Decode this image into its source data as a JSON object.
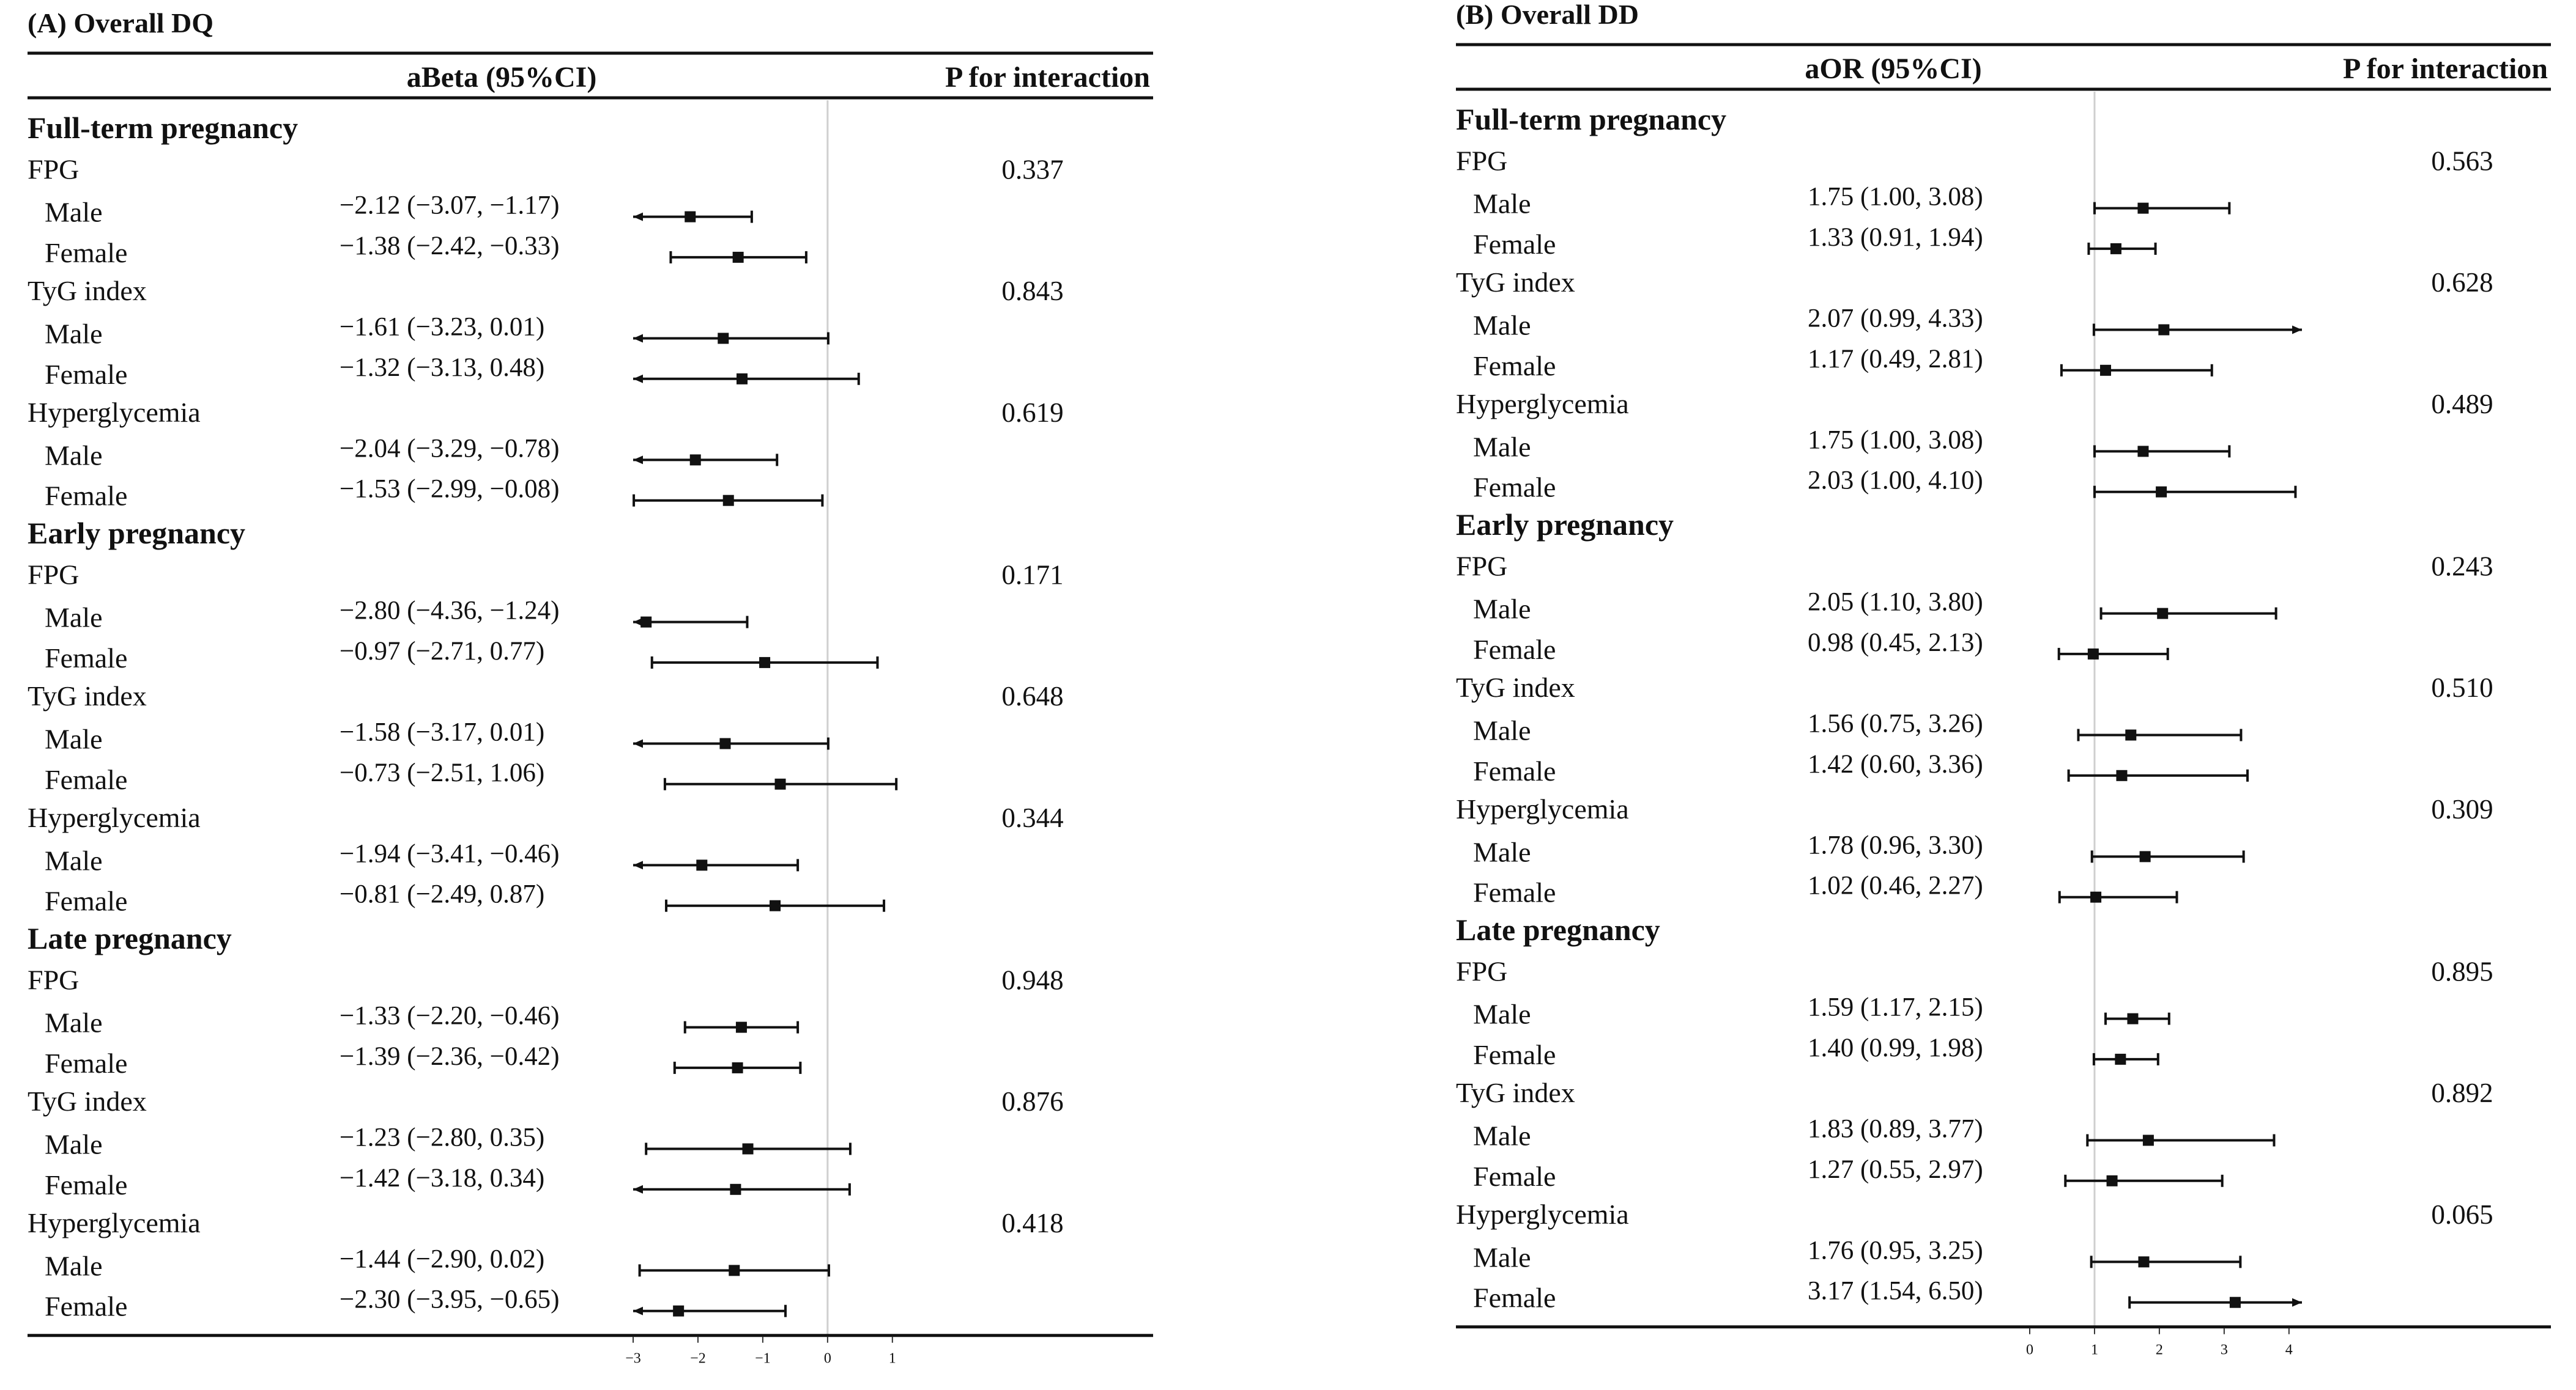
{
  "chart_data": [
    {
      "type": "forest",
      "title": "(A) Overall DQ",
      "estimate_header": "aBeta (95%CI)",
      "p_header": "P for interaction",
      "null_value": 0,
      "xlim": [
        -3,
        1.2
      ],
      "x_ticks": [
        "-3",
        "-2",
        "-1",
        "0",
        "1"
      ],
      "groups": [
        {
          "period": "Full-term pregnancy",
          "exposures": [
            {
              "name": "FPG",
              "p": "0.337",
              "rows": [
                {
                  "sex": "Male",
                  "label": "−2.12 (−3.07, −1.17)",
                  "est": -2.12,
                  "lo": -3.07,
                  "hi": -1.17
                },
                {
                  "sex": "Female",
                  "label": "−1.38 (−2.42, −0.33)",
                  "est": -1.38,
                  "lo": -2.42,
                  "hi": -0.33
                }
              ]
            },
            {
              "name": "TyG index",
              "p": "0.843",
              "rows": [
                {
                  "sex": "Male",
                  "label": "−1.61 (−3.23, 0.01)",
                  "est": -1.61,
                  "lo": -3.23,
                  "hi": 0.01
                },
                {
                  "sex": "Female",
                  "label": "−1.32 (−3.13, 0.48)",
                  "est": -1.32,
                  "lo": -3.13,
                  "hi": 0.48
                }
              ]
            },
            {
              "name": "Hyperglycemia",
              "p": "0.619",
              "rows": [
                {
                  "sex": "Male",
                  "label": "−2.04 (−3.29, −0.78)",
                  "est": -2.04,
                  "lo": -3.29,
                  "hi": -0.78
                },
                {
                  "sex": "Female",
                  "label": "−1.53 (−2.99, −0.08)",
                  "est": -1.53,
                  "lo": -2.99,
                  "hi": -0.08
                }
              ]
            }
          ]
        },
        {
          "period": "Early pregnancy",
          "exposures": [
            {
              "name": "FPG",
              "p": "0.171",
              "rows": [
                {
                  "sex": "Male",
                  "label": "−2.80 (−4.36, −1.24)",
                  "est": -2.8,
                  "lo": -4.36,
                  "hi": -1.24
                },
                {
                  "sex": "Female",
                  "label": "−0.97 (−2.71, 0.77)",
                  "est": -0.97,
                  "lo": -2.71,
                  "hi": 0.77
                }
              ]
            },
            {
              "name": "TyG index",
              "p": "0.648",
              "rows": [
                {
                  "sex": "Male",
                  "label": "−1.58 (−3.17, 0.01)",
                  "est": -1.58,
                  "lo": -3.17,
                  "hi": 0.01
                },
                {
                  "sex": "Female",
                  "label": "−0.73 (−2.51, 1.06)",
                  "est": -0.73,
                  "lo": -2.51,
                  "hi": 1.06
                }
              ]
            },
            {
              "name": "Hyperglycemia",
              "p": "0.344",
              "rows": [
                {
                  "sex": "Male",
                  "label": "−1.94 (−3.41, −0.46)",
                  "est": -1.94,
                  "lo": -3.41,
                  "hi": -0.46
                },
                {
                  "sex": "Female",
                  "label": "−0.81 (−2.49, 0.87)",
                  "est": -0.81,
                  "lo": -2.49,
                  "hi": 0.87
                }
              ]
            }
          ]
        },
        {
          "period": "Late pregnancy",
          "exposures": [
            {
              "name": "FPG",
              "p": "0.948",
              "rows": [
                {
                  "sex": "Male",
                  "label": "−1.33 (−2.20, −0.46)",
                  "est": -1.33,
                  "lo": -2.2,
                  "hi": -0.46
                },
                {
                  "sex": "Female",
                  "label": "−1.39 (−2.36, −0.42)",
                  "est": -1.39,
                  "lo": -2.36,
                  "hi": -0.42
                }
              ]
            },
            {
              "name": "TyG index",
              "p": "0.876",
              "rows": [
                {
                  "sex": "Male",
                  "label": "−1.23 (−2.80, 0.35)",
                  "est": -1.23,
                  "lo": -2.8,
                  "hi": 0.35
                },
                {
                  "sex": "Female",
                  "label": "−1.42 (−3.18, 0.34)",
                  "est": -1.42,
                  "lo": -3.18,
                  "hi": 0.34
                }
              ]
            },
            {
              "name": "Hyperglycemia",
              "p": "0.418",
              "rows": [
                {
                  "sex": "Male",
                  "label": "−1.44 (−2.90, 0.02)",
                  "est": -1.44,
                  "lo": -2.9,
                  "hi": 0.02
                },
                {
                  "sex": "Female",
                  "label": "−2.30 (−3.95, −0.65)",
                  "est": -2.3,
                  "lo": -3.95,
                  "hi": -0.65
                }
              ]
            }
          ]
        }
      ]
    },
    {
      "type": "forest",
      "title": "(B) Overall DD",
      "estimate_header": "aOR (95%CI)",
      "p_header": "P for interaction",
      "null_value": 1,
      "xlim": [
        0,
        4.2
      ],
      "x_ticks": [
        "0",
        "1",
        "2",
        "3",
        "4"
      ],
      "groups": [
        {
          "period": "Full-term pregnancy",
          "exposures": [
            {
              "name": "FPG",
              "p": "0.563",
              "rows": [
                {
                  "sex": "Male",
                  "label": "1.75 (1.00, 3.08)",
                  "est": 1.75,
                  "lo": 1.0,
                  "hi": 3.08
                },
                {
                  "sex": "Female",
                  "label": "1.33 (0.91, 1.94)",
                  "est": 1.33,
                  "lo": 0.91,
                  "hi": 1.94
                }
              ]
            },
            {
              "name": "TyG index",
              "p": "0.628",
              "rows": [
                {
                  "sex": "Male",
                  "label": "2.07 (0.99, 4.33)",
                  "est": 2.07,
                  "lo": 0.99,
                  "hi": 4.33
                },
                {
                  "sex": "Female",
                  "label": "1.17 (0.49, 2.81)",
                  "est": 1.17,
                  "lo": 0.49,
                  "hi": 2.81
                }
              ]
            },
            {
              "name": "Hyperglycemia",
              "p": "0.489",
              "rows": [
                {
                  "sex": "Male",
                  "label": "1.75 (1.00, 3.08)",
                  "est": 1.75,
                  "lo": 1.0,
                  "hi": 3.08
                },
                {
                  "sex": "Female",
                  "label": "2.03 (1.00, 4.10)",
                  "est": 2.03,
                  "lo": 1.0,
                  "hi": 4.1
                }
              ]
            }
          ]
        },
        {
          "period": "Early pregnancy",
          "exposures": [
            {
              "name": "FPG",
              "p": "0.243",
              "rows": [
                {
                  "sex": "Male",
                  "label": "2.05 (1.10, 3.80)",
                  "est": 2.05,
                  "lo": 1.1,
                  "hi": 3.8
                },
                {
                  "sex": "Female",
                  "label": "0.98 (0.45, 2.13)",
                  "est": 0.98,
                  "lo": 0.45,
                  "hi": 2.13
                }
              ]
            },
            {
              "name": "TyG index",
              "p": "0.510",
              "rows": [
                {
                  "sex": "Male",
                  "label": "1.56 (0.75, 3.26)",
                  "est": 1.56,
                  "lo": 0.75,
                  "hi": 3.26
                },
                {
                  "sex": "Female",
                  "label": "1.42 (0.60, 3.36)",
                  "est": 1.42,
                  "lo": 0.6,
                  "hi": 3.36
                }
              ]
            },
            {
              "name": "Hyperglycemia",
              "p": "0.309",
              "rows": [
                {
                  "sex": "Male",
                  "label": "1.78 (0.96, 3.30)",
                  "est": 1.78,
                  "lo": 0.96,
                  "hi": 3.3
                },
                {
                  "sex": "Female",
                  "label": "1.02 (0.46, 2.27)",
                  "est": 1.02,
                  "lo": 0.46,
                  "hi": 2.27
                }
              ]
            }
          ]
        },
        {
          "period": "Late pregnancy",
          "exposures": [
            {
              "name": "FPG",
              "p": "0.895",
              "rows": [
                {
                  "sex": "Male",
                  "label": "1.59 (1.17, 2.15)",
                  "est": 1.59,
                  "lo": 1.17,
                  "hi": 2.15
                },
                {
                  "sex": "Female",
                  "label": "1.40 (0.99, 1.98)",
                  "est": 1.4,
                  "lo": 0.99,
                  "hi": 1.98
                }
              ]
            },
            {
              "name": "TyG index",
              "p": "0.892",
              "rows": [
                {
                  "sex": "Male",
                  "label": "1.83 (0.89, 3.77)",
                  "est": 1.83,
                  "lo": 0.89,
                  "hi": 3.77
                },
                {
                  "sex": "Female",
                  "label": "1.27 (0.55, 2.97)",
                  "est": 1.27,
                  "lo": 0.55,
                  "hi": 2.97
                }
              ]
            },
            {
              "name": "Hyperglycemia",
              "p": "0.065",
              "rows": [
                {
                  "sex": "Male",
                  "label": "1.76 (0.95, 3.25)",
                  "est": 1.76,
                  "lo": 0.95,
                  "hi": 3.25
                },
                {
                  "sex": "Female",
                  "label": "3.17 (1.54, 6.50)",
                  "est": 3.17,
                  "lo": 1.54,
                  "hi": 6.5
                }
              ]
            }
          ]
        }
      ]
    }
  ]
}
